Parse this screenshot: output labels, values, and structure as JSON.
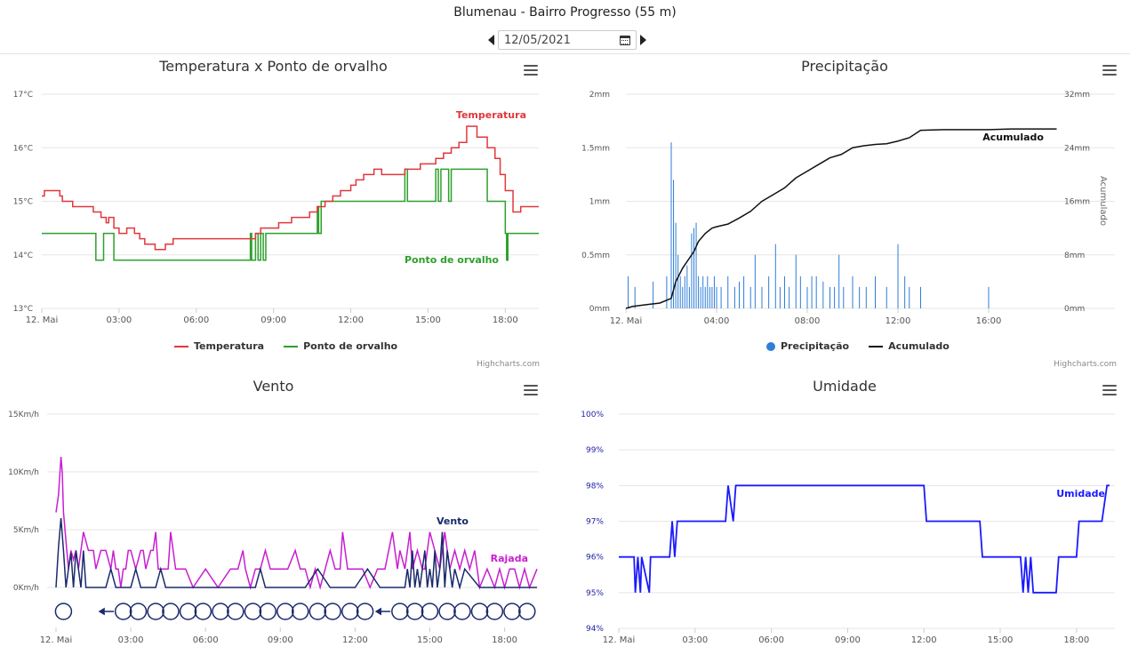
{
  "header": {
    "title": "Blumenau - Bairro Progresso (55 m)",
    "date": "12/05/2021"
  },
  "credits": "Highcharts.com",
  "chart_data": [
    {
      "id": "temp",
      "type": "line",
      "title": "Temperatura x Ponto de orvalho",
      "x_labels": [
        "12. Mai",
        "03:00",
        "06:00",
        "09:00",
        "12:00",
        "15:00",
        "18:00"
      ],
      "x_range_hours": [
        0,
        19.3
      ],
      "ylim": [
        13,
        17
      ],
      "y_ticks": [
        13,
        14,
        15,
        16,
        17
      ],
      "y_tick_labels": [
        "13°C",
        "14°C",
        "15°C",
        "16°C",
        "17°C"
      ],
      "legend": "bottom-center",
      "grid": true,
      "series": [
        {
          "name": "Temperatura",
          "color": "#e0383b",
          "step": true,
          "x": [
            0,
            0.1,
            0.3,
            0.7,
            0.8,
            1.2,
            1.4,
            2,
            2.3,
            2.5,
            2.6,
            2.8,
            3,
            3.3,
            3.6,
            3.8,
            4,
            4.4,
            4.8,
            5.1,
            5.4,
            6,
            7,
            7.8,
            8.3,
            8.5,
            8.8,
            9.2,
            9.4,
            9.7,
            10,
            10.4,
            10.7,
            11,
            11.3,
            11.6,
            12,
            12.2,
            12.5,
            12.9,
            13.2,
            13.8,
            14.1,
            14.4,
            14.7,
            15,
            15.3,
            15.6,
            15.9,
            16.2,
            16.5,
            16.7,
            16.9,
            17.3,
            17.6,
            17.8,
            18,
            18.3,
            18.6,
            19.3
          ],
          "y": [
            15.1,
            15.2,
            15.2,
            15.1,
            15,
            14.9,
            14.9,
            14.8,
            14.7,
            14.6,
            14.7,
            14.5,
            14.4,
            14.5,
            14.4,
            14.3,
            14.2,
            14.1,
            14.2,
            14.3,
            14.3,
            14.3,
            14.3,
            14.3,
            14.4,
            14.5,
            14.5,
            14.6,
            14.6,
            14.7,
            14.7,
            14.8,
            14.9,
            15,
            15.1,
            15.2,
            15.3,
            15.4,
            15.5,
            15.6,
            15.5,
            15.5,
            15.6,
            15.6,
            15.7,
            15.7,
            15.8,
            15.9,
            16,
            16.1,
            16.4,
            16.4,
            16.2,
            16,
            15.8,
            15.5,
            15.2,
            14.8,
            14.9,
            14.9
          ]
        },
        {
          "name": "Ponto de orvalho",
          "color": "#2ea02c",
          "step": true,
          "x": [
            0,
            1.8,
            2.1,
            2.4,
            2.6,
            2.8,
            3.2,
            4,
            5,
            6,
            7,
            7.8,
            8.1,
            8.15,
            8.3,
            8.4,
            8.5,
            8.6,
            8.7,
            10.6,
            10.7,
            10.75,
            10.85,
            12,
            13,
            14,
            14.1,
            14.2,
            14.3,
            15.2,
            15.3,
            15.4,
            15.5,
            15.8,
            15.9,
            16,
            16.1,
            16.6,
            17,
            17.3,
            17.6,
            18,
            18.05,
            18.1,
            18.4,
            19.3
          ],
          "y": [
            14.4,
            14.4,
            13.9,
            14.4,
            14.4,
            13.9,
            13.9,
            13.9,
            13.9,
            13.9,
            13.9,
            13.9,
            14.4,
            13.9,
            14.4,
            13.9,
            14.4,
            13.9,
            14.4,
            14.4,
            14.9,
            14.4,
            15,
            15,
            15,
            15,
            15.6,
            15,
            15,
            15,
            15.6,
            15,
            15.6,
            15,
            15.6,
            15.6,
            15.6,
            15.6,
            15.6,
            15,
            15,
            14.4,
            13.9,
            14.4,
            14.4,
            14.4
          ]
        }
      ],
      "annotations": [
        {
          "text": "Temperatura",
          "color": "#e0383b"
        },
        {
          "text": "Ponto de orvalho",
          "color": "#2ea02c"
        }
      ]
    },
    {
      "id": "prec",
      "type": "bar+line",
      "title": "Precipitação",
      "x_labels": [
        "12. Mai",
        "04:00",
        "08:00",
        "12:00",
        "16:00"
      ],
      "x_range_hours": [
        0,
        20
      ],
      "ylim": [
        0,
        2
      ],
      "y_tick_labels": [
        "0mm",
        "0.5mm",
        "1mm",
        "1.5mm",
        "2mm"
      ],
      "y2lim": [
        0,
        32
      ],
      "y2_tick_labels": [
        "0mm",
        "8mm",
        "16mm",
        "24mm",
        "32mm"
      ],
      "y2label": "Acumulado",
      "legend": "bottom-center",
      "grid": true,
      "series": [
        {
          "name": "Precipitação",
          "color": "#2f7ed8",
          "type": "column",
          "x": [
            0.1,
            0.4,
            1.2,
            1.8,
            2,
            2.1,
            2.2,
            2.3,
            2.4,
            2.5,
            2.6,
            2.7,
            2.8,
            2.9,
            3,
            3.1,
            3.2,
            3.3,
            3.4,
            3.5,
            3.6,
            3.7,
            3.8,
            3.9,
            4,
            4.2,
            4.5,
            4.8,
            5,
            5.2,
            5.5,
            5.7,
            6,
            6.3,
            6.6,
            6.8,
            7,
            7.2,
            7.5,
            7.7,
            8,
            8.2,
            8.4,
            8.7,
            9,
            9.2,
            9.4,
            9.6,
            10,
            10.3,
            10.6,
            11,
            11.5,
            12,
            12.3,
            12.5,
            13,
            16
          ],
          "y": [
            0.3,
            0.2,
            0.25,
            0.3,
            1.55,
            1.2,
            0.8,
            0.5,
            0.3,
            0.2,
            0.3,
            0.4,
            0.2,
            0.7,
            0.75,
            0.8,
            0.3,
            0.2,
            0.3,
            0.2,
            0.3,
            0.2,
            0.2,
            0.3,
            0.2,
            0.2,
            0.3,
            0.2,
            0.25,
            0.3,
            0.2,
            0.5,
            0.2,
            0.3,
            0.6,
            0.2,
            0.3,
            0.2,
            0.5,
            0.3,
            0.2,
            0.3,
            0.3,
            0.25,
            0.2,
            0.2,
            0.5,
            0.2,
            0.3,
            0.2,
            0.2,
            0.3,
            0.2,
            0.6,
            0.3,
            0.2,
            0.2,
            0.2
          ]
        },
        {
          "name": "Acumulado",
          "color": "#111111",
          "type": "line",
          "x": [
            0,
            0.3,
            1,
            1.5,
            2,
            2.2,
            2.5,
            2.8,
            3,
            3.2,
            3.5,
            3.8,
            4,
            4.5,
            5,
            5.5,
            6,
            6.5,
            7,
            7.5,
            8,
            8.5,
            9,
            9.5,
            10,
            10.5,
            11,
            11.5,
            12,
            12.5,
            13,
            14,
            15,
            16,
            17,
            18,
            19
          ],
          "y": [
            0,
            0.3,
            0.6,
            0.8,
            1.5,
            4,
            6,
            7.5,
            8.5,
            10,
            11.2,
            12,
            12.2,
            12.6,
            13.5,
            14.5,
            16,
            17,
            18,
            19.5,
            20.5,
            21.5,
            22.5,
            23,
            24,
            24.3,
            24.5,
            24.6,
            25,
            25.5,
            26.6,
            26.7,
            26.7,
            26.7,
            26.8,
            26.8,
            26.8
          ]
        }
      ],
      "annotations": [
        {
          "text": "Acumulado",
          "color": "#111111"
        }
      ]
    },
    {
      "id": "vento",
      "type": "line",
      "title": "Vento",
      "x_labels": [
        "12. Mai",
        "03:00",
        "06:00",
        "09:00",
        "12:00",
        "15:00",
        "18:00"
      ],
      "x_range_hours": [
        0,
        19.3
      ],
      "ylim": [
        0,
        15
      ],
      "y_tick_labels": [
        "0Km/h",
        "5Km/h",
        "10Km/h",
        "15Km/h"
      ],
      "legend": "none",
      "grid": true,
      "series": [
        {
          "name": "Rajada",
          "color": "#c81ed0",
          "x": [
            0,
            0.1,
            0.2,
            0.25,
            0.3,
            0.4,
            0.5,
            0.6,
            0.7,
            0.8,
            0.9,
            1,
            1.1,
            1.3,
            1.5,
            1.6,
            1.8,
            2,
            2.2,
            2.3,
            2.4,
            2.5,
            2.6,
            2.7,
            2.8,
            2.9,
            3,
            3.2,
            3.4,
            3.5,
            3.6,
            3.8,
            3.9,
            4,
            4.1,
            4.3,
            4.5,
            4.6,
            4.8,
            5,
            5.2,
            5.5,
            6,
            6.5,
            7,
            7.3,
            7.5,
            7.6,
            7.8,
            8,
            8.2,
            8.4,
            8.6,
            8.8,
            9,
            9.3,
            9.6,
            9.8,
            10,
            10.2,
            10.4,
            10.6,
            10.8,
            11,
            11.2,
            11.4,
            11.5,
            11.7,
            12,
            12.3,
            12.6,
            12.9,
            13.2,
            13.5,
            13.7,
            13.8,
            14,
            14.2,
            14.3,
            14.5,
            14.7,
            14.8,
            15,
            15.2,
            15.4,
            15.6,
            15.8,
            16,
            16.2,
            16.4,
            16.6,
            16.8,
            17,
            17.3,
            17.6,
            17.8,
            18,
            18.2,
            18.4,
            18.6,
            18.8,
            19,
            19.3
          ],
          "y": [
            6.5,
            8,
            11.3,
            10,
            6.5,
            4,
            1.6,
            3.2,
            2.4,
            3.2,
            1.6,
            3.2,
            4.8,
            3.2,
            3.2,
            1.6,
            3.2,
            3.2,
            1.6,
            3.2,
            1.6,
            1.6,
            0,
            1.6,
            1.6,
            3.2,
            3.2,
            1.6,
            3.2,
            3.2,
            1.6,
            3.2,
            3.2,
            4.8,
            1.6,
            1.6,
            1.6,
            4.8,
            1.6,
            1.6,
            1.6,
            0,
            1.6,
            0,
            1.6,
            1.6,
            3.2,
            1.6,
            0,
            1.6,
            1.6,
            3.2,
            1.6,
            1.6,
            1.6,
            1.6,
            3.2,
            1.6,
            1.6,
            0,
            1.6,
            0,
            1.6,
            3.2,
            1.6,
            1.6,
            4.8,
            1.6,
            1.6,
            1.6,
            0,
            1.6,
            1.6,
            4.8,
            1.6,
            3.2,
            1.6,
            4.8,
            1.6,
            3.2,
            1.6,
            1.6,
            4.8,
            3.2,
            1.6,
            4.8,
            1.6,
            3.2,
            1.6,
            3.2,
            1.6,
            3.2,
            0,
            1.6,
            0,
            1.6,
            0,
            1.6,
            1.6,
            0,
            1.6,
            0,
            1.6
          ]
        },
        {
          "name": "Vento",
          "color": "#1a2a6c",
          "x": [
            0,
            0.1,
            0.2,
            0.3,
            0.4,
            0.5,
            0.6,
            0.7,
            0.8,
            0.9,
            1,
            1.1,
            1.2,
            1.3,
            2,
            2.2,
            2.4,
            3,
            3.2,
            3.4,
            4,
            4.2,
            4.4,
            5,
            6,
            7,
            7.5,
            8,
            8.2,
            8.4,
            9,
            9.5,
            10,
            10.5,
            11,
            11.5,
            12,
            12.5,
            13,
            13.5,
            14,
            14.1,
            14.2,
            14.3,
            14.4,
            14.5,
            14.6,
            14.7,
            14.8,
            14.9,
            15,
            15.1,
            15.2,
            15.3,
            15.4,
            15.5,
            15.6,
            15.7,
            15.8,
            15.9,
            16,
            16.2,
            16.4,
            17,
            17.5,
            18,
            18.5,
            19.3
          ],
          "y": [
            0,
            3.5,
            6,
            3.2,
            0,
            1.6,
            3,
            0,
            3.2,
            1.6,
            0,
            3.2,
            0,
            0,
            0,
            1.6,
            0,
            0,
            1.6,
            0,
            0,
            1.6,
            0,
            0,
            0,
            0,
            0,
            0,
            1.6,
            0,
            0,
            0,
            0,
            1.6,
            0,
            0,
            0,
            1.6,
            0,
            0,
            0,
            1.6,
            0,
            3.2,
            0,
            1.6,
            0,
            1.6,
            3.2,
            0,
            1.6,
            0,
            3.2,
            0,
            1.6,
            4.8,
            0,
            3.2,
            1.6,
            0,
            1.6,
            0,
            1.6,
            0,
            0,
            0,
            0,
            0
          ]
        }
      ],
      "direction_markers": [
        {
          "x": 0.3,
          "dir": "calm"
        },
        {
          "x": 2.0,
          "dir": "arrow"
        },
        {
          "x": 2.7,
          "dir": "calm"
        },
        {
          "x": 3.3,
          "dir": "calm"
        },
        {
          "x": 4.0,
          "dir": "calm"
        },
        {
          "x": 4.6,
          "dir": "calm"
        },
        {
          "x": 5.3,
          "dir": "calm"
        },
        {
          "x": 5.9,
          "dir": "calm"
        },
        {
          "x": 6.6,
          "dir": "calm"
        },
        {
          "x": 7.2,
          "dir": "calm"
        },
        {
          "x": 7.9,
          "dir": "calm"
        },
        {
          "x": 8.5,
          "dir": "calm"
        },
        {
          "x": 9.2,
          "dir": "calm"
        },
        {
          "x": 9.8,
          "dir": "calm"
        },
        {
          "x": 10.5,
          "dir": "calm"
        },
        {
          "x": 11.1,
          "dir": "calm"
        },
        {
          "x": 11.8,
          "dir": "calm"
        },
        {
          "x": 12.4,
          "dir": "calm"
        },
        {
          "x": 13.1,
          "dir": "arrow"
        },
        {
          "x": 13.8,
          "dir": "calm"
        },
        {
          "x": 14.4,
          "dir": "calm"
        },
        {
          "x": 15.0,
          "dir": "calm"
        },
        {
          "x": 15.7,
          "dir": "calm"
        },
        {
          "x": 16.3,
          "dir": "calm"
        },
        {
          "x": 17.0,
          "dir": "calm"
        },
        {
          "x": 17.6,
          "dir": "calm"
        },
        {
          "x": 18.3,
          "dir": "calm"
        },
        {
          "x": 18.9,
          "dir": "calm"
        }
      ],
      "annotations": [
        {
          "text": "Vento",
          "color": "#1a2a6c"
        },
        {
          "text": "Rajada",
          "color": "#c81ed0"
        }
      ]
    },
    {
      "id": "umid",
      "type": "line",
      "title": "Umidade",
      "x_labels": [
        "12. Mai",
        "03:00",
        "06:00",
        "09:00",
        "12:00",
        "15:00",
        "18:00"
      ],
      "x_range_hours": [
        0,
        19.3
      ],
      "ylim": [
        94,
        100
      ],
      "y_tick_labels": [
        "94%",
        "95%",
        "96%",
        "97%",
        "98%",
        "99%",
        "100%"
      ],
      "legend": "none",
      "grid": true,
      "series": [
        {
          "name": "Umidade",
          "color": "#1a1aff",
          "x": [
            0,
            0.6,
            0.65,
            0.75,
            0.85,
            0.9,
            1.2,
            1.25,
            1.3,
            2,
            2.1,
            2.2,
            2.3,
            2.5,
            4.2,
            4.3,
            4.5,
            4.6,
            4.7,
            12,
            12.1,
            14.2,
            14.3,
            15.8,
            15.9,
            16,
            16.1,
            16.2,
            16.3,
            16.5,
            17,
            17.2,
            17.3,
            18,
            18.1,
            19,
            19.2,
            19.3
          ],
          "y": [
            96,
            96,
            95,
            96,
            95,
            96,
            95,
            96,
            96,
            96,
            97,
            96,
            97,
            97,
            97,
            98,
            97,
            98,
            98,
            98,
            97,
            97,
            96,
            96,
            95,
            96,
            95,
            96,
            95,
            95,
            95,
            95,
            96,
            96,
            97,
            97,
            98,
            98
          ]
        }
      ],
      "annotations": [
        {
          "text": "Umidade",
          "color": "#1a1aff"
        }
      ]
    }
  ]
}
